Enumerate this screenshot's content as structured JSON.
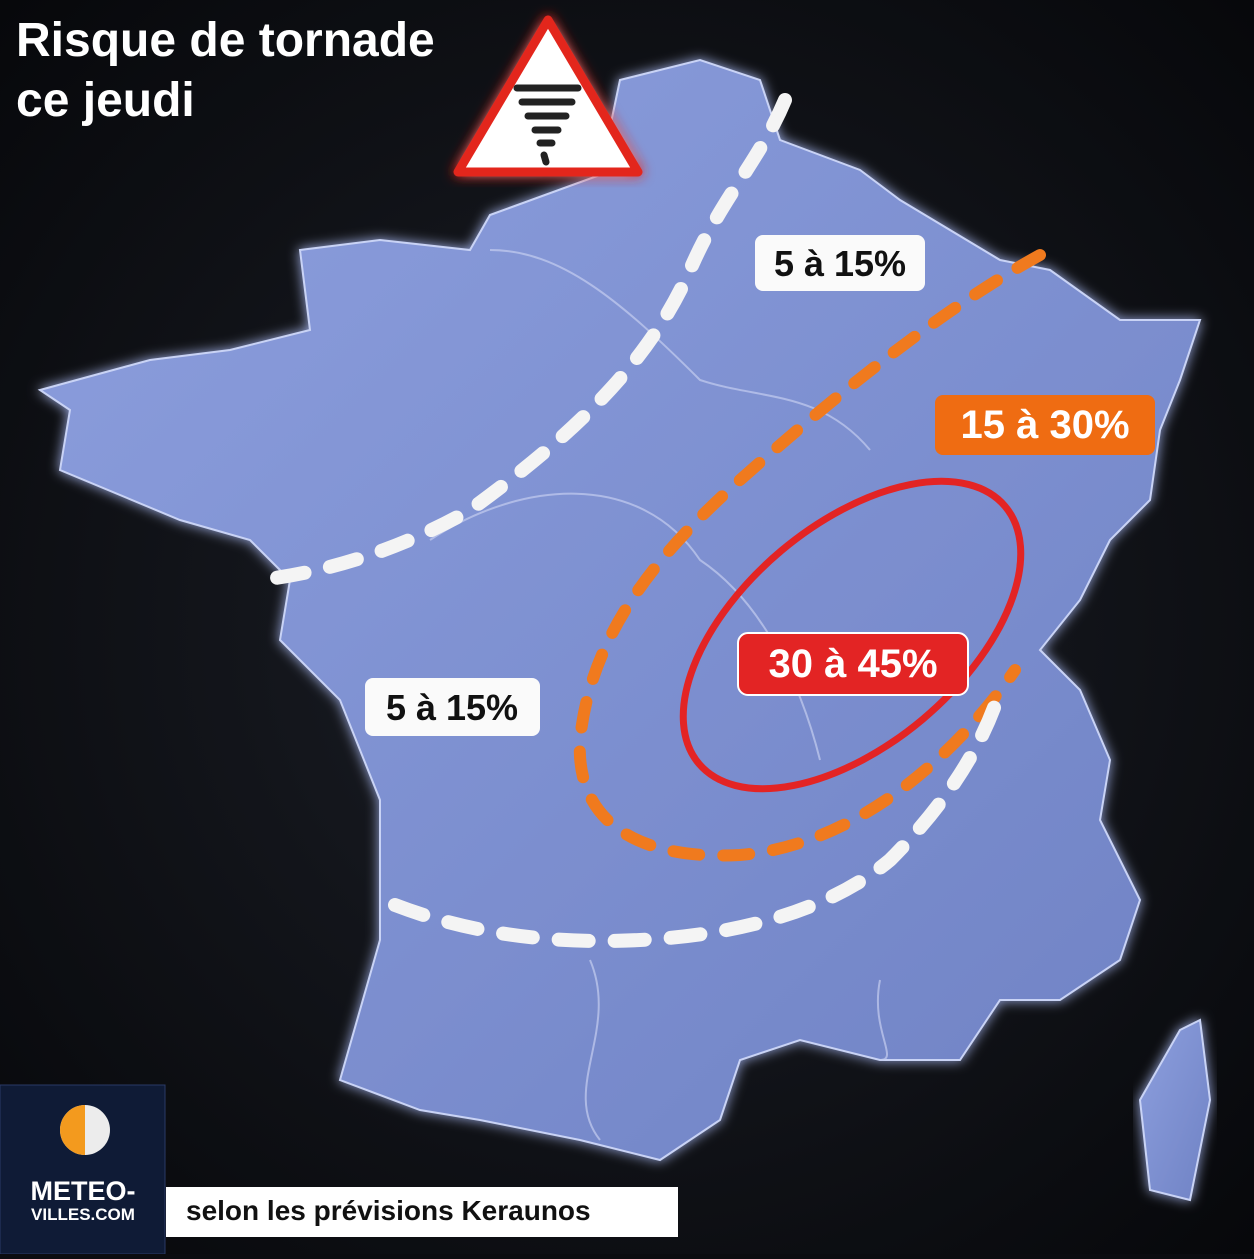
{
  "header": {
    "title_lines": [
      "Risque de tornade",
      "ce jeudi"
    ]
  },
  "zones": [
    {
      "label": "5 à 15%"
    },
    {
      "label": "15 à 30%"
    },
    {
      "label": "30 à 45%"
    },
    {
      "label": "5 à 15%"
    }
  ],
  "logo": {
    "line1": "METEO-",
    "line2": "VILLES.COM"
  },
  "source": "selon les prévisions Keraunos"
}
